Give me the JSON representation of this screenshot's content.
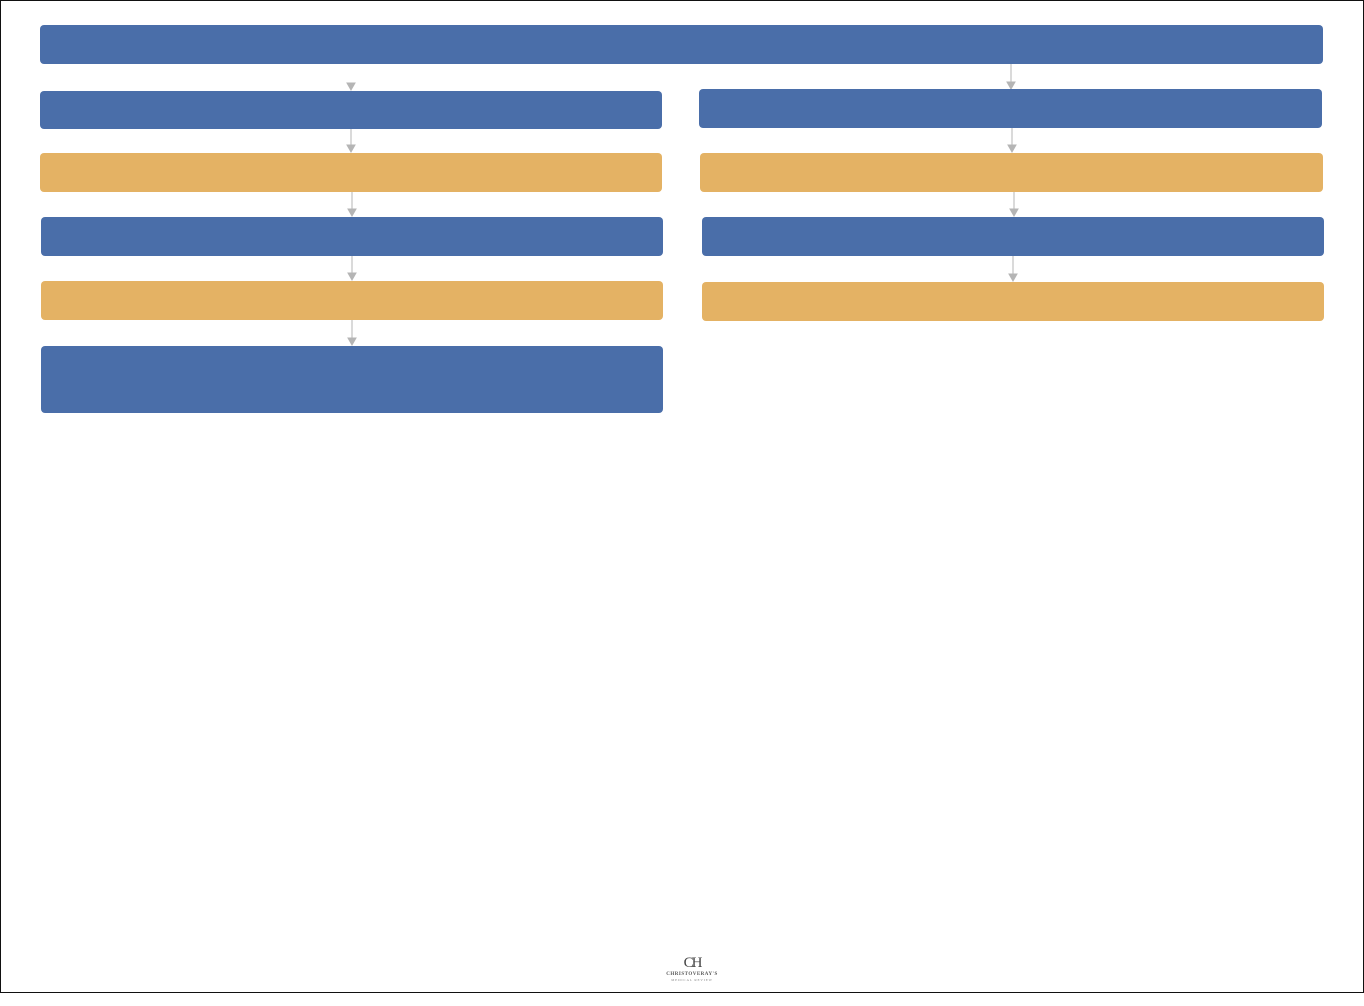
{
  "diagram": {
    "colors": {
      "primary_box": "#4a6ea9",
      "secondary_box": "#e4b264",
      "connector": "#b5b5b5",
      "frame": "#111111"
    },
    "root": {
      "label": "",
      "color": "primary"
    },
    "left_column": [
      {
        "label": "",
        "color": "primary"
      },
      {
        "label": "",
        "color": "secondary"
      },
      {
        "label": "",
        "color": "primary"
      },
      {
        "label": "",
        "color": "secondary"
      },
      {
        "label": "",
        "color": "primary"
      }
    ],
    "right_column": [
      {
        "label": "",
        "color": "primary"
      },
      {
        "label": "",
        "color": "secondary"
      },
      {
        "label": "",
        "color": "primary"
      },
      {
        "label": "",
        "color": "secondary"
      }
    ]
  },
  "logo": {
    "mark": "CH",
    "line1": "CHRISTOVERAY'S",
    "line2": "MEDICAL REVIEW"
  }
}
